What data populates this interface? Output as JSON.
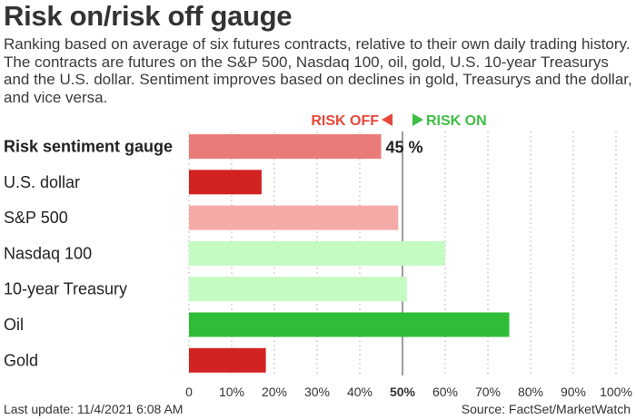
{
  "chart_data": {
    "type": "bar",
    "orientation": "horizontal",
    "title": "Risk on/risk off gauge",
    "subtitle": "Ranking based on average of six futures contracts, relative to their own daily trading history. The contracts are futures on the S&P 500, Nasdaq 100, oil, gold, U.S. 10-year Treasurys and the U.S. dollar. Sentiment improves based on declines in gold, Treasurys and the dollar, and vice versa.",
    "categories": [
      "Risk sentiment gauge",
      "U.S. dollar",
      "S&P 500",
      "Nasdaq 100",
      "10-year Treasury",
      "Oil",
      "Gold"
    ],
    "values": [
      45,
      17,
      49,
      60,
      51,
      75,
      18
    ],
    "bar_colors": [
      "#ea7b7b",
      "#d32222",
      "#f6aaa8",
      "#c3fbc3",
      "#c3fbc3",
      "#2fbc37",
      "#d32222"
    ],
    "data_labels": [
      "45 %",
      "",
      "",
      "",
      "",
      "",
      ""
    ],
    "xlim": [
      0,
      100
    ],
    "xticks": [
      "0",
      "10%",
      "20%",
      "30%",
      "40%",
      "50%",
      "60%",
      "70%",
      "80%",
      "90%",
      "100%"
    ],
    "grid": "vertical-dashed",
    "legend": {
      "risk_off": "RISK OFF",
      "risk_on": "RISK ON",
      "risk_off_color": "#e8483b",
      "risk_on_color": "#3fbf45",
      "placement": "top-center"
    }
  },
  "footer": {
    "last_update": "Last update: 11/4/2021 6:08 AM",
    "source": "Source: FactSet/MarketWatch"
  }
}
